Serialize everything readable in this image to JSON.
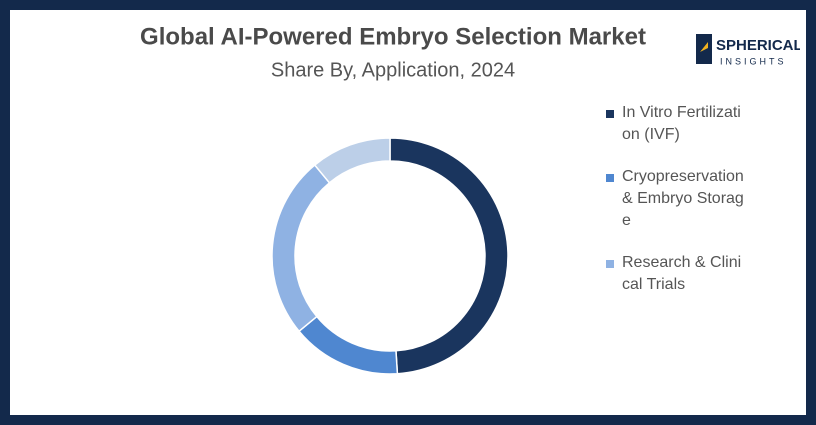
{
  "logo": {
    "top": "SPHERICAL",
    "bottom": "INSIGHTS"
  },
  "chart_data": {
    "type": "donut",
    "title": "Global AI-Powered Embryo Selection Market",
    "subtitle": "Share By, Application, 2024",
    "categories": [
      "In Vitro Fertilization (IVF)",
      "Cryopreservation & Embryo Storage",
      "Research & Clinical Trials",
      null
    ],
    "values": [
      49,
      15,
      25,
      11
    ],
    "colors": [
      "#1a355e",
      "#4f87d0",
      "#8fb2e3",
      "#bccfe8"
    ],
    "legend": "right"
  }
}
